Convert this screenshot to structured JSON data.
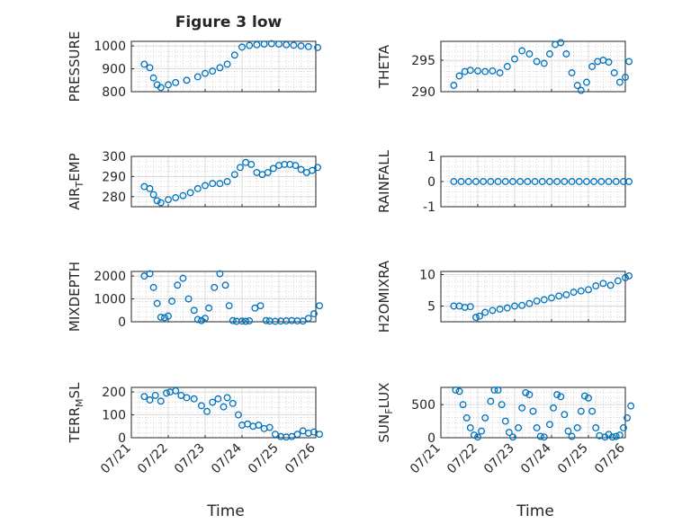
{
  "figure": {
    "title": "Figure 3 low",
    "xlabel": "Time"
  },
  "colors": {
    "marker": "#0072BD",
    "axis": "#262626",
    "grid": "#bdbdbd",
    "background": "#ffffff"
  },
  "chart_data": [
    {
      "type": "scatter",
      "title": "Figure 3 low",
      "ylabel": "PRESSURE",
      "ylabel_sub": "",
      "ylim": [
        800,
        1020
      ],
      "yticks": [
        800,
        900,
        1000
      ],
      "xlim": [
        0,
        5
      ],
      "xticklabels": [
        "07/21",
        "07/22",
        "07/23",
        "07/24",
        "07/25",
        "07/26"
      ],
      "show_xticklabels": false,
      "grid": true,
      "series": [
        {
          "x": [
            0.35,
            0.5,
            0.6,
            0.7,
            0.8,
            1,
            1.2,
            1.5,
            1.8,
            2,
            2.2,
            2.4,
            2.6,
            2.8,
            3,
            3.2,
            3.4,
            3.6,
            3.8,
            4,
            4.2,
            4.4,
            4.6,
            4.8,
            5.05
          ],
          "y": [
            920,
            905,
            860,
            830,
            818,
            830,
            840,
            850,
            865,
            880,
            890,
            905,
            920,
            960,
            995,
            1002,
            1005,
            1008,
            1010,
            1008,
            1005,
            1003,
            1000,
            997,
            993
          ]
        }
      ]
    },
    {
      "type": "scatter",
      "title": "",
      "ylabel": "THETA",
      "ylabel_sub": "",
      "ylim": [
        290,
        298
      ],
      "yticks": [
        290,
        295
      ],
      "xlim": [
        0,
        5
      ],
      "xticklabels": [
        "07/21",
        "07/22",
        "07/23",
        "07/24",
        "07/25",
        "07/26"
      ],
      "show_xticklabels": false,
      "grid": true,
      "series": [
        {
          "x": [
            0.35,
            0.5,
            0.65,
            0.8,
            1,
            1.2,
            1.4,
            1.6,
            1.8,
            2,
            2.2,
            2.4,
            2.6,
            2.8,
            2.95,
            3.1,
            3.25,
            3.4,
            3.55,
            3.7,
            3.8,
            3.95,
            4.1,
            4.25,
            4.4,
            4.55,
            4.7,
            4.85,
            5.0,
            5.1
          ],
          "y": [
            291,
            292.5,
            293.2,
            293.4,
            293.3,
            293.2,
            293.3,
            293,
            294,
            295.2,
            296.5,
            296,
            294.8,
            294.5,
            296,
            297.5,
            297.8,
            296,
            293,
            291,
            290.2,
            291.5,
            294,
            294.8,
            295,
            294.7,
            293,
            291.5,
            292.3,
            294.8
          ]
        }
      ]
    },
    {
      "type": "scatter",
      "title": "",
      "ylabel": "AIR",
      "ylabel_sub": "T",
      "ylabel_suffix": "EMP",
      "ylim": [
        275,
        300
      ],
      "yticks": [
        280,
        290,
        300
      ],
      "xlim": [
        0,
        5
      ],
      "xticklabels": [
        "07/21",
        "07/22",
        "07/23",
        "07/24",
        "07/25",
        "07/26"
      ],
      "show_xticklabels": false,
      "grid": true,
      "series": [
        {
          "x": [
            0.35,
            0.5,
            0.6,
            0.7,
            0.8,
            1,
            1.2,
            1.4,
            1.6,
            1.8,
            2,
            2.2,
            2.4,
            2.6,
            2.8,
            2.95,
            3.1,
            3.25,
            3.4,
            3.55,
            3.7,
            3.85,
            4,
            4.15,
            4.3,
            4.45,
            4.6,
            4.75,
            4.9,
            5.05
          ],
          "y": [
            285,
            284,
            281,
            278,
            277,
            278.5,
            279.5,
            280.5,
            282,
            284,
            285.5,
            286.5,
            286.5,
            287.5,
            291,
            294.5,
            297,
            296,
            292,
            291,
            292,
            294,
            295.5,
            296,
            296,
            295.5,
            293.5,
            292,
            293,
            294.5
          ]
        }
      ]
    },
    {
      "type": "scatter",
      "title": "",
      "ylabel": "RAINFALL",
      "ylabel_sub": "",
      "ylim": [
        -1,
        1
      ],
      "yticks": [
        -1,
        0,
        1
      ],
      "xlim": [
        0,
        5
      ],
      "xticklabels": [
        "07/21",
        "07/22",
        "07/23",
        "07/24",
        "07/25",
        "07/26"
      ],
      "show_xticklabels": false,
      "grid": true,
      "series": [
        {
          "x": [
            0.35,
            0.55,
            0.75,
            0.95,
            1.15,
            1.35,
            1.55,
            1.75,
            1.95,
            2.15,
            2.35,
            2.55,
            2.75,
            2.95,
            3.15,
            3.35,
            3.55,
            3.75,
            3.95,
            4.15,
            4.35,
            4.55,
            4.75,
            4.95,
            5.1
          ],
          "y": [
            0,
            0,
            0,
            0,
            0,
            0,
            0,
            0,
            0,
            0,
            0,
            0,
            0,
            0,
            0,
            0,
            0,
            0,
            0,
            0,
            0,
            0,
            0,
            0,
            0
          ]
        }
      ]
    },
    {
      "type": "scatter",
      "title": "",
      "ylabel": "MIXDEPTH",
      "ylabel_sub": "",
      "ylim": [
        0,
        2200
      ],
      "yticks": [
        0,
        1000,
        2000
      ],
      "xlim": [
        0,
        5
      ],
      "xticklabels": [
        "07/21",
        "07/22",
        "07/23",
        "07/24",
        "07/25",
        "07/26"
      ],
      "show_xticklabels": false,
      "grid": true,
      "series": [
        {
          "x": [
            0.35,
            0.5,
            0.6,
            0.7,
            0.8,
            0.9,
            1.0,
            1.1,
            1.25,
            1.4,
            1.55,
            1.7,
            1.8,
            1.9,
            2.0,
            2.1,
            2.25,
            2.4,
            2.55,
            2.65,
            2.75,
            2.85,
            3.0,
            3.1,
            3.2,
            3.35,
            3.5,
            3.65,
            3.75,
            3.9,
            4.05,
            4.2,
            4.35,
            4.5,
            4.65,
            4.8,
            4.95,
            5.1
          ],
          "y": [
            2000,
            2100,
            1500,
            800,
            200,
            180,
            250,
            900,
            1600,
            1900,
            1000,
            500,
            100,
            50,
            150,
            600,
            1500,
            2100,
            1600,
            700,
            50,
            20,
            30,
            20,
            40,
            600,
            700,
            50,
            30,
            20,
            30,
            40,
            50,
            40,
            30,
            150,
            350,
            700
          ]
        }
      ]
    },
    {
      "type": "scatter",
      "title": "",
      "ylabel": "H2OMIXRA",
      "ylabel_sub": "",
      "ylim": [
        2.5,
        10.5
      ],
      "yticks": [
        5,
        10
      ],
      "xlim": [
        0,
        5
      ],
      "xticklabels": [
        "07/21",
        "07/22",
        "07/23",
        "07/24",
        "07/25",
        "07/26"
      ],
      "show_xticklabels": false,
      "grid": true,
      "series": [
        {
          "x": [
            0.35,
            0.5,
            0.65,
            0.8,
            0.95,
            1.05,
            1.2,
            1.4,
            1.6,
            1.8,
            2.0,
            2.2,
            2.4,
            2.6,
            2.8,
            3.0,
            3.2,
            3.4,
            3.6,
            3.8,
            4.0,
            4.2,
            4.4,
            4.6,
            4.8,
            5.0,
            5.1
          ],
          "y": [
            5,
            5,
            4.8,
            4.9,
            3.2,
            3.4,
            4,
            4.3,
            4.5,
            4.7,
            5,
            5.1,
            5.4,
            5.8,
            6,
            6.3,
            6.6,
            6.8,
            7.2,
            7.4,
            7.6,
            8.2,
            8.6,
            8.3,
            9,
            9.5,
            9.8
          ]
        }
      ]
    },
    {
      "type": "scatter",
      "title": "",
      "ylabel": "TERR",
      "ylabel_sub": "M",
      "ylabel_suffix": "SL",
      "ylim": [
        0,
        220
      ],
      "yticks": [
        0,
        100,
        200
      ],
      "xlim": [
        0,
        5
      ],
      "xticklabels": [
        "07/21",
        "07/22",
        "07/23",
        "07/24",
        "07/25",
        "07/26"
      ],
      "show_xticklabels": true,
      "grid": true,
      "series": [
        {
          "x": [
            0.35,
            0.5,
            0.65,
            0.8,
            0.95,
            1.05,
            1.2,
            1.35,
            1.5,
            1.7,
            1.9,
            2.05,
            2.2,
            2.35,
            2.5,
            2.6,
            2.75,
            2.9,
            3.0,
            3.15,
            3.3,
            3.45,
            3.6,
            3.75,
            3.9,
            4.05,
            4.2,
            4.35,
            4.5,
            4.65,
            4.8,
            4.95,
            5.1
          ],
          "y": [
            180,
            165,
            185,
            160,
            195,
            200,
            205,
            185,
            175,
            170,
            140,
            115,
            155,
            170,
            135,
            175,
            150,
            100,
            55,
            60,
            50,
            55,
            40,
            45,
            15,
            5,
            3,
            5,
            15,
            30,
            20,
            25,
            15
          ]
        }
      ]
    },
    {
      "type": "scatter",
      "title": "",
      "ylabel": "SUN",
      "ylabel_sub": "F",
      "ylabel_suffix": "LUX",
      "ylim": [
        0,
        760
      ],
      "yticks": [
        0,
        500
      ],
      "xlim": [
        0,
        5
      ],
      "xticklabels": [
        "07/21",
        "07/22",
        "07/23",
        "07/24",
        "07/25",
        "07/26"
      ],
      "show_xticklabels": true,
      "grid": true,
      "series": [
        {
          "x": [
            0.4,
            0.5,
            0.6,
            0.7,
            0.8,
            0.9,
            1.0,
            1.1,
            1.2,
            1.35,
            1.45,
            1.55,
            1.65,
            1.75,
            1.85,
            1.95,
            2.1,
            2.2,
            2.3,
            2.4,
            2.5,
            2.6,
            2.7,
            2.8,
            2.95,
            3.05,
            3.15,
            3.25,
            3.35,
            3.45,
            3.55,
            3.7,
            3.8,
            3.9,
            4.0,
            4.1,
            4.2,
            4.3,
            4.45,
            4.55,
            4.65,
            4.75,
            4.85,
            4.95,
            5.05,
            5.15
          ],
          "y": [
            720,
            700,
            500,
            300,
            150,
            40,
            10,
            100,
            300,
            550,
            720,
            720,
            500,
            250,
            80,
            10,
            150,
            450,
            680,
            650,
            400,
            150,
            20,
            10,
            200,
            450,
            650,
            620,
            350,
            100,
            20,
            150,
            400,
            630,
            600,
            400,
            150,
            30,
            10,
            50,
            10,
            20,
            40,
            150,
            300,
            480
          ]
        }
      ]
    }
  ]
}
